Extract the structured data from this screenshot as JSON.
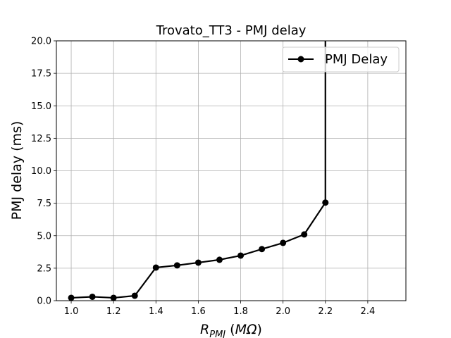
{
  "chart_data": {
    "type": "line",
    "title": "Trovato_TT3 - PMJ delay",
    "xlabel": {
      "base": "R",
      "sub": "PMJ",
      "unit_open": " (",
      "unit_var": "MΩ",
      "unit_close": ")"
    },
    "ylabel": "PMJ delay (ms)",
    "xlim": [
      0.93,
      2.58
    ],
    "ylim": [
      0,
      20
    ],
    "xticks": [
      "1.0",
      "1.2",
      "1.4",
      "1.6",
      "1.8",
      "2.0",
      "2.2",
      "2.4"
    ],
    "yticks": [
      "0.0",
      "2.5",
      "5.0",
      "7.5",
      "10.0",
      "12.5",
      "15.0",
      "17.5",
      "20.0"
    ],
    "grid": true,
    "legend_position": "top-right",
    "series": [
      {
        "name": "PMJ Delay",
        "color": "#000000",
        "marker": "circle",
        "x": [
          1.0,
          1.1,
          1.2,
          1.3,
          1.4,
          1.5,
          1.6,
          1.7,
          1.8,
          1.9,
          2.0,
          2.1,
          2.2
        ],
        "y": [
          0.22,
          0.3,
          0.22,
          0.38,
          2.55,
          2.72,
          2.93,
          3.15,
          3.47,
          3.97,
          4.45,
          5.1,
          7.55
        ],
        "vertical_line": {
          "x": 2.2,
          "from": 7.55,
          "to": 20
        }
      }
    ]
  }
}
